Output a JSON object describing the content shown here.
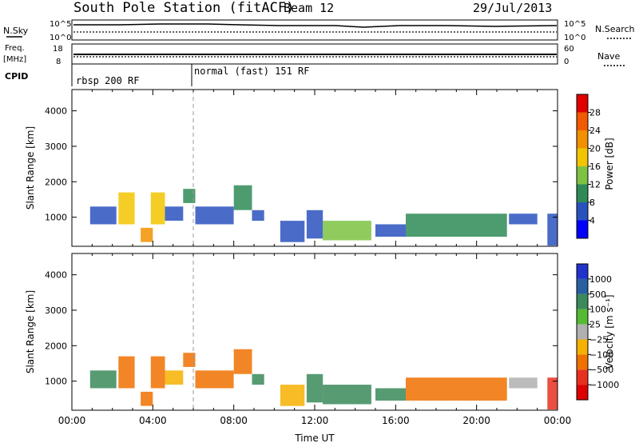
{
  "header": {
    "title": "South Pole Station (fitACF)",
    "beam": "Beam 12",
    "date": "29/Jul/2013"
  },
  "strip_panels": {
    "nsky": {
      "label": "N.Sky",
      "ticks": [
        "10^5",
        "10^0"
      ]
    },
    "nsearch": {
      "label": "N.Search",
      "ticks": [
        "10^5",
        "10^0"
      ]
    },
    "freq": {
      "label_line1": "Freq.",
      "label_line2": "[MHz]",
      "ticks": [
        "18",
        "8"
      ]
    },
    "nave": {
      "label": "Nave",
      "ticks": [
        "60",
        "0"
      ]
    },
    "cpid": {
      "label": "CPID",
      "segments": [
        {
          "text": "rbsp 200 RF",
          "start_hour": 0
        },
        {
          "text": "normal (fast) 151 RF",
          "start_hour": 6
        }
      ]
    }
  },
  "chart_data": [
    {
      "type": "heatmap",
      "panel": "power",
      "xlabel": "",
      "ylabel": "Slant Range [km]",
      "x_range_hours": [
        0,
        24
      ],
      "ylim": [
        180,
        4600
      ],
      "yticks": [
        "1000",
        "2000",
        "3000",
        "4000"
      ],
      "colorbar": {
        "label": "Power [dB]",
        "ticks": [
          "4",
          "8",
          "12",
          "16",
          "20",
          "24",
          "28"
        ],
        "colors": [
          "#0000ff",
          "#2a52be",
          "#2e8b57",
          "#7dc242",
          "#f2c500",
          "#f29000",
          "#f25a00",
          "#e00000"
        ]
      },
      "patches": [
        {
          "x0": 0.9,
          "x1": 2.2,
          "y0": 800,
          "y1": 1300,
          "level": 1
        },
        {
          "x0": 2.3,
          "x1": 3.1,
          "y0": 800,
          "y1": 1700,
          "level": 4
        },
        {
          "x0": 3.4,
          "x1": 4.0,
          "y0": 300,
          "y1": 700,
          "level": 5
        },
        {
          "x0": 3.9,
          "x1": 4.6,
          "y0": 800,
          "y1": 1700,
          "level": 4
        },
        {
          "x0": 4.6,
          "x1": 5.5,
          "y0": 900,
          "y1": 1300,
          "level": 1
        },
        {
          "x0": 5.5,
          "x1": 6.1,
          "y0": 1400,
          "y1": 1800,
          "level": 2
        },
        {
          "x0": 6.1,
          "x1": 8.0,
          "y0": 800,
          "y1": 1300,
          "level": 1
        },
        {
          "x0": 8.0,
          "x1": 8.9,
          "y0": 1200,
          "y1": 1900,
          "level": 2
        },
        {
          "x0": 8.9,
          "x1": 9.5,
          "y0": 900,
          "y1": 1200,
          "level": 1
        },
        {
          "x0": 10.3,
          "x1": 11.5,
          "y0": 300,
          "y1": 900,
          "level": 1
        },
        {
          "x0": 11.6,
          "x1": 12.4,
          "y0": 400,
          "y1": 1200,
          "level": 1
        },
        {
          "x0": 12.4,
          "x1": 14.8,
          "y0": 350,
          "y1": 900,
          "level": 3
        },
        {
          "x0": 15.0,
          "x1": 16.5,
          "y0": 450,
          "y1": 800,
          "level": 1
        },
        {
          "x0": 16.5,
          "x1": 21.5,
          "y0": 450,
          "y1": 1100,
          "level": 2
        },
        {
          "x0": 21.6,
          "x1": 23.0,
          "y0": 800,
          "y1": 1100,
          "level": 1
        },
        {
          "x0": 23.5,
          "x1": 24.0,
          "y0": 200,
          "y1": 1100,
          "level": 1
        }
      ]
    },
    {
      "type": "heatmap",
      "panel": "velocity",
      "xlabel": "Time UT",
      "ylabel": "Slant Range [km]",
      "x_range_hours": [
        0,
        24
      ],
      "ylim": [
        180,
        4600
      ],
      "yticks": [
        "1000",
        "2000",
        "3000",
        "4000"
      ],
      "xticks": [
        "00:00",
        "04:00",
        "08:00",
        "12:00",
        "16:00",
        "20:00",
        "00:00"
      ],
      "colorbar": {
        "label": "Velocity [m s⁻¹]",
        "ticks": [
          "1000",
          "500",
          "100",
          "25",
          "−25",
          "−100",
          "−500",
          "−1000"
        ],
        "colors": [
          "#2233cc",
          "#2a5fa0",
          "#3a8a5a",
          "#55bb33",
          "#b0b0b0",
          "#f6b000",
          "#f07000",
          "#e83020",
          "#dd0000"
        ]
      },
      "patches": [
        {
          "x0": 0.9,
          "x1": 2.2,
          "y0": 800,
          "y1": 1300,
          "level": 2
        },
        {
          "x0": 2.3,
          "x1": 3.1,
          "y0": 800,
          "y1": 1700,
          "level": 6
        },
        {
          "x0": 3.4,
          "x1": 4.0,
          "y0": 300,
          "y1": 700,
          "level": 6
        },
        {
          "x0": 3.9,
          "x1": 4.6,
          "y0": 800,
          "y1": 1700,
          "level": 6
        },
        {
          "x0": 4.6,
          "x1": 5.5,
          "y0": 900,
          "y1": 1300,
          "level": 5
        },
        {
          "x0": 5.5,
          "x1": 6.1,
          "y0": 1400,
          "y1": 1800,
          "level": 6
        },
        {
          "x0": 6.1,
          "x1": 8.0,
          "y0": 800,
          "y1": 1300,
          "level": 6
        },
        {
          "x0": 8.0,
          "x1": 8.9,
          "y0": 1200,
          "y1": 1900,
          "level": 6
        },
        {
          "x0": 8.9,
          "x1": 9.5,
          "y0": 900,
          "y1": 1200,
          "level": 2
        },
        {
          "x0": 10.3,
          "x1": 11.5,
          "y0": 300,
          "y1": 900,
          "level": 5
        },
        {
          "x0": 11.6,
          "x1": 12.4,
          "y0": 400,
          "y1": 1200,
          "level": 2
        },
        {
          "x0": 12.4,
          "x1": 14.8,
          "y0": 350,
          "y1": 900,
          "level": 2
        },
        {
          "x0": 15.0,
          "x1": 16.5,
          "y0": 450,
          "y1": 800,
          "level": 2
        },
        {
          "x0": 16.5,
          "x1": 21.5,
          "y0": 450,
          "y1": 1100,
          "level": 6
        },
        {
          "x0": 21.6,
          "x1": 23.0,
          "y0": 800,
          "y1": 1100,
          "level": 4
        },
        {
          "x0": 23.5,
          "x1": 24.0,
          "y0": 200,
          "y1": 1100,
          "level": 7
        }
      ]
    }
  ]
}
